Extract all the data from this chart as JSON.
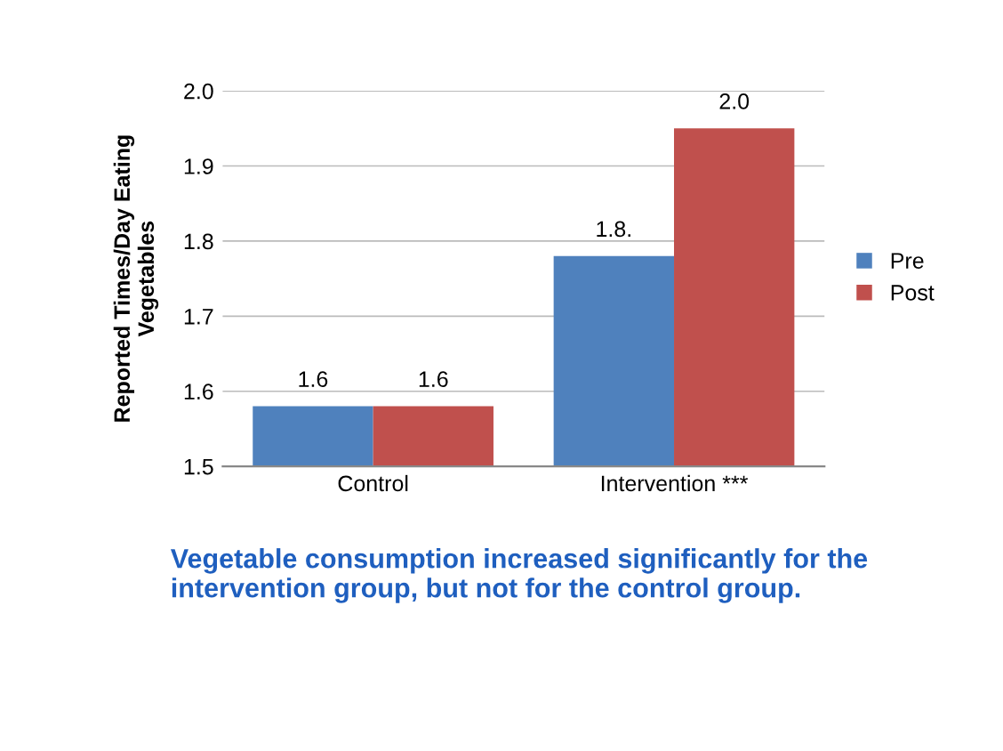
{
  "chart_data": {
    "type": "bar",
    "ylabel": "Reported Times/Day Eating\nVegetables",
    "categories": [
      "Control",
      "Intervention ***"
    ],
    "series": [
      {
        "name": "Pre",
        "color": "#4f81bd",
        "values": [
          1.58,
          1.78
        ],
        "value_labels": [
          "1.6",
          "1.8."
        ]
      },
      {
        "name": "Post",
        "color": "#c0504d",
        "values": [
          1.58,
          1.95
        ],
        "value_labels": [
          "1.6",
          "2.0"
        ]
      }
    ],
    "ylim": [
      1.5,
      2.0
    ],
    "yticks": [
      {
        "value": 1.5,
        "label": "1.5"
      },
      {
        "value": 1.6,
        "label": "1.6"
      },
      {
        "value": 1.7,
        "label": "1.7"
      },
      {
        "value": 1.8,
        "label": "1.8"
      },
      {
        "value": 1.9,
        "label": "1.9"
      },
      {
        "value": 2.0,
        "label": "2.0"
      }
    ],
    "grid": "y",
    "legend": "right",
    "annotations": [
      "Vegetable consumption increased significantly for the intervention group, but not for the control group."
    ]
  }
}
